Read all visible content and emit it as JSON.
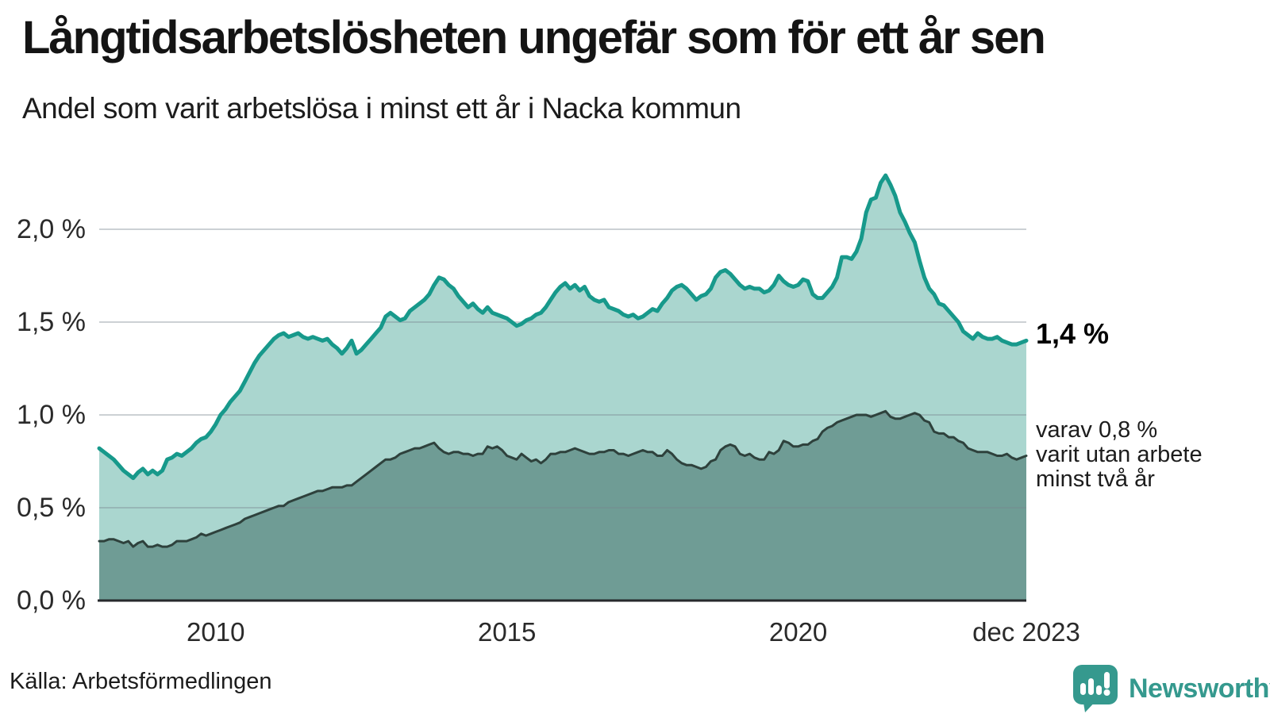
{
  "header": {
    "title": "Långtidsarbetslösheten ungefär som för ett år sen",
    "subtitle": "Andel som varit arbetslösa i minst ett år i Nacka kommun"
  },
  "annotations": {
    "end_value": "1,4 %",
    "sub_line1": "varav 0,8 %",
    "sub_line2": "varit utan arbete",
    "sub_line3": "minst två år"
  },
  "source": "Källa: Arbetsförmedlingen",
  "logo": {
    "text": "Newsworthy",
    "color": "#35998e"
  },
  "colors": {
    "accent_line": "#17998b",
    "accent_fill": "#aad6cf",
    "dark_line": "#2e413c",
    "dark_fill": "#6f9c95",
    "grid": "rgba(122,134,142,0.38)",
    "axis": "#26292c"
  },
  "chart_data": {
    "type": "area",
    "title": "Långtidsarbetslösheten ungefär som för ett år sen",
    "subtitle": "Andel som varit arbetslösa i minst ett år i Nacka kommun",
    "unit": "%",
    "frequency": "monthly",
    "period": "2008-01 to 2023-12",
    "ylim": [
      0,
      2.35
    ],
    "grid": true,
    "legend_position": "right-annotations",
    "yticks": [
      {
        "label": "2,0 %",
        "value": 2.0
      },
      {
        "label": "1,5 %",
        "value": 1.5
      },
      {
        "label": "1,0 %",
        "value": 1.0
      },
      {
        "label": "0,5 %",
        "value": 0.5
      },
      {
        "label": "0,0 %",
        "value": 0.0
      }
    ],
    "xticks": [
      {
        "label": "2010",
        "month_index": 24
      },
      {
        "label": "2015",
        "month_index": 84
      },
      {
        "label": "2020",
        "month_index": 144
      },
      {
        "label": "dec 2023",
        "month_index": 191
      }
    ],
    "series": [
      {
        "name": "Andel som varit arbetslösa i minst ett år",
        "end_label": "1,4 %",
        "line_color": "#17998b",
        "fill_color": "#aad6cf",
        "values": [
          0.82,
          0.8,
          0.78,
          0.76,
          0.73,
          0.7,
          0.68,
          0.66,
          0.69,
          0.71,
          0.68,
          0.7,
          0.68,
          0.7,
          0.76,
          0.77,
          0.79,
          0.78,
          0.8,
          0.82,
          0.85,
          0.87,
          0.88,
          0.91,
          0.95,
          1.0,
          1.03,
          1.07,
          1.1,
          1.13,
          1.18,
          1.23,
          1.28,
          1.32,
          1.35,
          1.38,
          1.41,
          1.43,
          1.44,
          1.42,
          1.43,
          1.44,
          1.42,
          1.41,
          1.42,
          1.41,
          1.4,
          1.41,
          1.38,
          1.36,
          1.33,
          1.36,
          1.4,
          1.33,
          1.35,
          1.38,
          1.41,
          1.44,
          1.47,
          1.53,
          1.55,
          1.53,
          1.51,
          1.52,
          1.56,
          1.58,
          1.6,
          1.62,
          1.65,
          1.7,
          1.74,
          1.73,
          1.7,
          1.68,
          1.64,
          1.61,
          1.58,
          1.6,
          1.57,
          1.55,
          1.58,
          1.55,
          1.54,
          1.53,
          1.52,
          1.5,
          1.48,
          1.49,
          1.51,
          1.52,
          1.54,
          1.55,
          1.58,
          1.62,
          1.66,
          1.69,
          1.71,
          1.68,
          1.7,
          1.67,
          1.69,
          1.64,
          1.62,
          1.61,
          1.62,
          1.58,
          1.57,
          1.56,
          1.54,
          1.53,
          1.54,
          1.52,
          1.53,
          1.55,
          1.57,
          1.56,
          1.6,
          1.63,
          1.67,
          1.69,
          1.7,
          1.68,
          1.65,
          1.62,
          1.64,
          1.65,
          1.68,
          1.74,
          1.77,
          1.78,
          1.76,
          1.73,
          1.7,
          1.68,
          1.69,
          1.68,
          1.68,
          1.66,
          1.67,
          1.7,
          1.75,
          1.72,
          1.7,
          1.69,
          1.7,
          1.73,
          1.72,
          1.65,
          1.63,
          1.63,
          1.66,
          1.69,
          1.74,
          1.85,
          1.85,
          1.84,
          1.88,
          1.95,
          2.09,
          2.16,
          2.17,
          2.25,
          2.29,
          2.24,
          2.18,
          2.09,
          2.04,
          1.98,
          1.93,
          1.83,
          1.74,
          1.68,
          1.65,
          1.6,
          1.59,
          1.56,
          1.53,
          1.5,
          1.45,
          1.43,
          1.41,
          1.44,
          1.42,
          1.41,
          1.41,
          1.42,
          1.4,
          1.39,
          1.38,
          1.38,
          1.39,
          1.4
        ]
      },
      {
        "name": "varav arbetslösa minst två år",
        "end_label": "0,8 %",
        "line_color": "#2e413c",
        "fill_color": "#6f9c95",
        "values": [
          0.32,
          0.32,
          0.33,
          0.33,
          0.32,
          0.31,
          0.32,
          0.29,
          0.31,
          0.32,
          0.29,
          0.29,
          0.3,
          0.29,
          0.29,
          0.3,
          0.32,
          0.32,
          0.32,
          0.33,
          0.34,
          0.36,
          0.35,
          0.36,
          0.37,
          0.38,
          0.39,
          0.4,
          0.41,
          0.42,
          0.44,
          0.45,
          0.46,
          0.47,
          0.48,
          0.49,
          0.5,
          0.51,
          0.51,
          0.53,
          0.54,
          0.55,
          0.56,
          0.57,
          0.58,
          0.59,
          0.59,
          0.6,
          0.61,
          0.61,
          0.61,
          0.62,
          0.62,
          0.64,
          0.66,
          0.68,
          0.7,
          0.72,
          0.74,
          0.76,
          0.76,
          0.77,
          0.79,
          0.8,
          0.81,
          0.82,
          0.82,
          0.83,
          0.84,
          0.85,
          0.82,
          0.8,
          0.79,
          0.8,
          0.8,
          0.79,
          0.79,
          0.78,
          0.79,
          0.79,
          0.83,
          0.82,
          0.83,
          0.81,
          0.78,
          0.77,
          0.76,
          0.79,
          0.77,
          0.75,
          0.76,
          0.74,
          0.76,
          0.79,
          0.79,
          0.8,
          0.8,
          0.81,
          0.82,
          0.81,
          0.8,
          0.79,
          0.79,
          0.8,
          0.8,
          0.81,
          0.81,
          0.79,
          0.79,
          0.78,
          0.79,
          0.8,
          0.81,
          0.8,
          0.8,
          0.78,
          0.78,
          0.81,
          0.79,
          0.76,
          0.74,
          0.73,
          0.73,
          0.72,
          0.71,
          0.72,
          0.75,
          0.76,
          0.81,
          0.83,
          0.84,
          0.83,
          0.79,
          0.78,
          0.79,
          0.77,
          0.76,
          0.76,
          0.8,
          0.79,
          0.81,
          0.86,
          0.85,
          0.83,
          0.83,
          0.84,
          0.84,
          0.86,
          0.87,
          0.91,
          0.93,
          0.94,
          0.96,
          0.97,
          0.98,
          0.99,
          1.0,
          1.0,
          1.0,
          0.99,
          1.0,
          1.01,
          1.02,
          0.99,
          0.98,
          0.98,
          0.99,
          1.0,
          1.01,
          1.0,
          0.97,
          0.96,
          0.91,
          0.9,
          0.9,
          0.88,
          0.88,
          0.86,
          0.85,
          0.82,
          0.81,
          0.8,
          0.8,
          0.8,
          0.79,
          0.78,
          0.78,
          0.79,
          0.77,
          0.76,
          0.77,
          0.78
        ]
      }
    ]
  }
}
